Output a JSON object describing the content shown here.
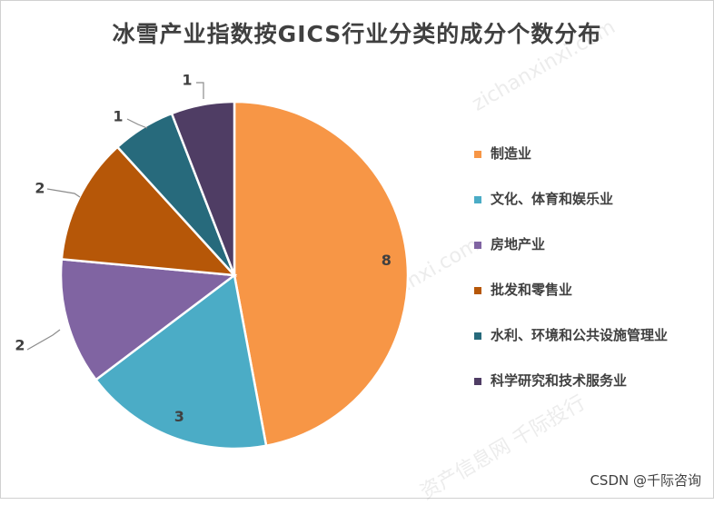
{
  "chart_data": {
    "type": "pie",
    "title": "冰雪产业指数按GICS行业分类的成分个数分布",
    "categories": [
      "制造业",
      "文化、体育和娱乐业",
      "房地产业",
      "批发和零售业",
      "水利、环境和公共设施管理业",
      "科学研究和技术服务业"
    ],
    "values": [
      8,
      3,
      2,
      2,
      1,
      1
    ],
    "colors": [
      "#F79646",
      "#4BACC6",
      "#8064A2",
      "#B65708",
      "#276A7C",
      "#4F3D64"
    ],
    "legend_position": "right",
    "data_labels": [
      "8",
      "3",
      "2",
      "2",
      "1",
      "1"
    ]
  },
  "watermark": {
    "credit": "CSDN @千际咨询",
    "background_text": [
      "资产信息网 千际投行",
      "zichanxinxi.com"
    ]
  }
}
